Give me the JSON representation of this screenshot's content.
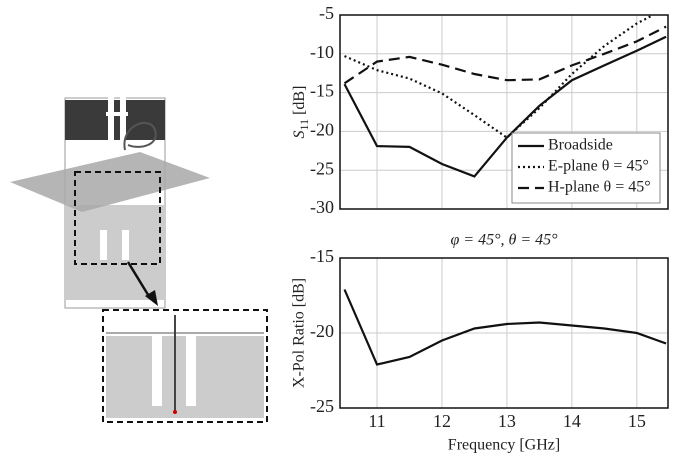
{
  "chart_data": [
    {
      "type": "line",
      "ylabel": {
        "symbol": "S",
        "subscript": "11",
        "unit": "[dB]"
      },
      "xlim": [
        10.43,
        15.48
      ],
      "ylim": [
        -30,
        -5
      ],
      "xticks": [
        11,
        12,
        13,
        14,
        15
      ],
      "yticks": [
        -30,
        -25,
        -20,
        -15,
        -10,
        -5
      ],
      "xtick_labels": false,
      "grid": true,
      "legend": "lower right",
      "series": [
        {
          "name": "Broadside",
          "color": "#111111",
          "linestyle": "solid",
          "x": [
            10.5,
            11,
            11.5,
            12,
            12.5,
            13,
            13.5,
            14,
            14.5,
            15,
            15.45
          ],
          "values": [
            -13.9,
            -21.9,
            -22,
            -24.2,
            -25.8,
            -20.8,
            -16.7,
            -13.4,
            -11.5,
            -9.6,
            -7.8
          ]
        },
        {
          "name": "E-plane θ = 45°",
          "color": "#111111",
          "linestyle": "dotted",
          "x": [
            10.5,
            11,
            11.5,
            12,
            12.5,
            13,
            13.5,
            14,
            14.5,
            15,
            15.25
          ],
          "values": [
            -10.3,
            -12.1,
            -13.2,
            -15.1,
            -17.9,
            -20.8,
            -17,
            -12.6,
            -9,
            -6.1,
            -5
          ]
        },
        {
          "name": "H-plane θ = 45°",
          "color": "#111111",
          "linestyle": "dashed",
          "x": [
            10.5,
            11,
            11.5,
            12,
            12.5,
            13,
            13.5,
            14,
            14.5,
            15,
            15.45
          ],
          "values": [
            -13.8,
            -11,
            -10.4,
            -11.4,
            -12.6,
            -13.4,
            -13.3,
            -11.5,
            -10,
            -8.4,
            -6.5
          ]
        }
      ]
    },
    {
      "type": "line",
      "title": "φ = 45°, θ = 45°",
      "xlabel": "Frequency [GHz]",
      "ylabel": "X-Pol Ratio [dB]",
      "xlim": [
        10.43,
        15.48
      ],
      "ylim": [
        -25,
        -15
      ],
      "xticks": [
        11,
        12,
        13,
        14,
        15
      ],
      "yticks": [
        -25,
        -20,
        -15
      ],
      "xtick_labels": true,
      "grid": true,
      "series": [
        {
          "color": "#111111",
          "linestyle": "solid",
          "x": [
            10.5,
            11,
            11.5,
            12,
            12.5,
            13,
            13.5,
            14,
            14.5,
            15,
            15.45
          ],
          "values": [
            -17.1,
            -22.1,
            -21.6,
            -20.5,
            -19.7,
            -19.4,
            -19.3,
            -19.5,
            -19.7,
            -20,
            -20.7
          ]
        }
      ]
    }
  ]
}
